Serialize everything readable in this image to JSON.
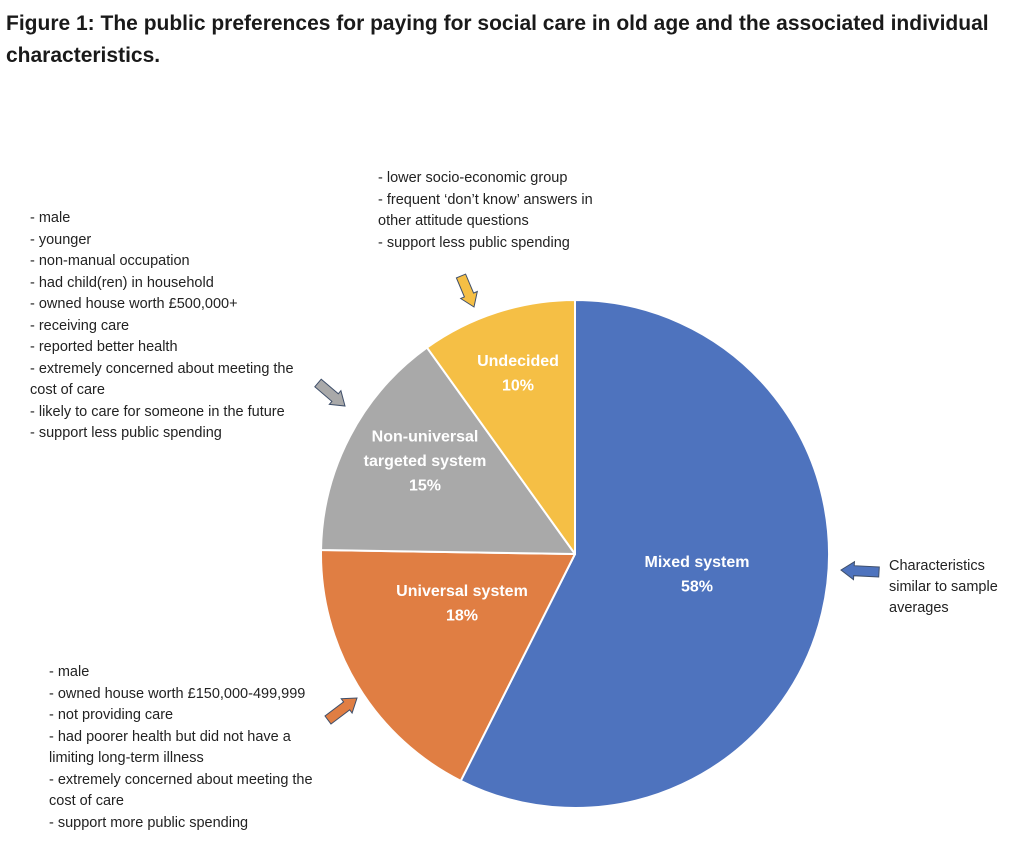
{
  "figure": {
    "label": "Figure 1:",
    "title": " The public preferences for paying for social care in old age and the associated individual characteristics."
  },
  "chart_data": {
    "type": "pie",
    "title": "The public preferences for paying for social care in old age and the associated individual characteristics.",
    "slices": [
      {
        "key": "mixed",
        "name": "Mixed system",
        "value": 58,
        "label": "58%",
        "color": "#4E73BE"
      },
      {
        "key": "universal",
        "name": "Universal system",
        "value": 18,
        "label": "18%",
        "color": "#E07E43"
      },
      {
        "key": "nonuniversal",
        "name": "Non-universal targeted system",
        "label_lines": [
          "Non-universal",
          "targeted system"
        ],
        "value": 15,
        "label": "15%",
        "color": "#A9A9A9"
      },
      {
        "key": "undecided",
        "name": "Undecided",
        "value": 10,
        "label": "10%",
        "color": "#F5BF45"
      }
    ],
    "legend": "none",
    "annotations": {
      "undecided": [
        "- lower socio-economic group",
        "- frequent ‘don’t know’ answers in",
        "other attitude questions",
        "- support less public spending"
      ],
      "nonuniversal": [
        "- male",
        "- younger",
        "- non-manual occupation",
        "- had child(ren) in household",
        "- owned house worth £500,000+",
        "- receiving care",
        "- reported better health",
        "- extremely concerned about meeting the",
        "cost of care",
        "- likely to care for someone in the future",
        "- support less public spending"
      ],
      "mixed": [
        "Characteristics",
        "similar to sample",
        "averages"
      ],
      "universal": [
        "- male",
        "- owned house worth £150,000-499,999",
        "- not providing care",
        "- had poorer health but did not have a",
        "limiting long-term illness",
        "- extremely concerned about meeting the",
        "cost of care",
        "- support more public spending"
      ]
    }
  }
}
